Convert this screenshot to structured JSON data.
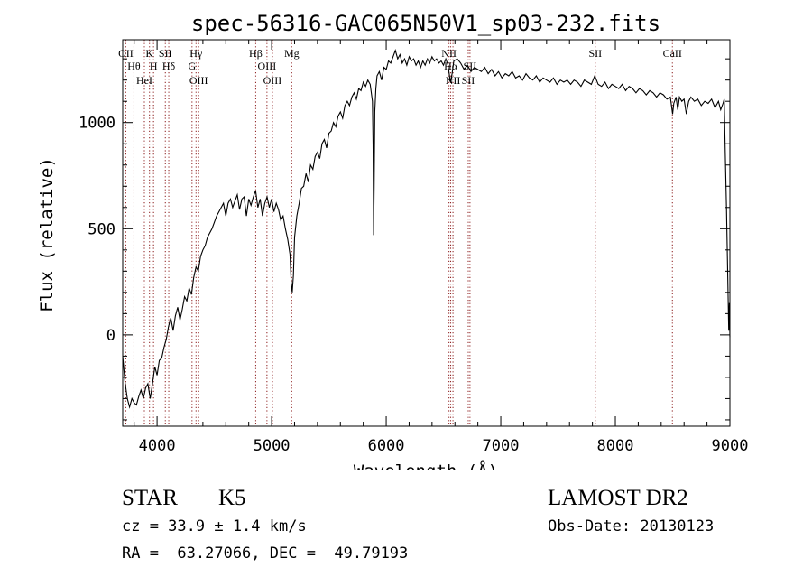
{
  "chart_data": {
    "type": "line",
    "title": "spec-56316-GAC065N50V1_sp03-232.fits",
    "xlabel": "Wavelength (Å)",
    "ylabel": "Flux (relative)",
    "xlim": [
      3700,
      9000
    ],
    "ylim": [
      -430,
      1390
    ],
    "xticks": [
      4000,
      5000,
      6000,
      7000,
      8000,
      9000
    ],
    "yticks": [
      0,
      500,
      1000
    ],
    "grid": false,
    "series": [
      {
        "points": [
          [
            3700,
            -100
          ],
          [
            3720,
            -220
          ],
          [
            3740,
            -300
          ],
          [
            3760,
            -340
          ],
          [
            3780,
            -300
          ],
          [
            3800,
            -320
          ],
          [
            3820,
            -330
          ],
          [
            3840,
            -290
          ],
          [
            3860,
            -260
          ],
          [
            3880,
            -300
          ],
          [
            3900,
            -250
          ],
          [
            3920,
            -230
          ],
          [
            3940,
            -300
          ],
          [
            3960,
            -230
          ],
          [
            3980,
            -150
          ],
          [
            4000,
            -190
          ],
          [
            4020,
            -120
          ],
          [
            4040,
            -110
          ],
          [
            4060,
            -60
          ],
          [
            4080,
            -20
          ],
          [
            4100,
            40
          ],
          [
            4120,
            80
          ],
          [
            4140,
            20
          ],
          [
            4160,
            90
          ],
          [
            4180,
            130
          ],
          [
            4200,
            70
          ],
          [
            4220,
            120
          ],
          [
            4240,
            180
          ],
          [
            4260,
            160
          ],
          [
            4280,
            220
          ],
          [
            4300,
            190
          ],
          [
            4320,
            270
          ],
          [
            4340,
            320
          ],
          [
            4360,
            300
          ],
          [
            4380,
            370
          ],
          [
            4400,
            400
          ],
          [
            4420,
            420
          ],
          [
            4440,
            460
          ],
          [
            4460,
            480
          ],
          [
            4480,
            500
          ],
          [
            4500,
            530
          ],
          [
            4520,
            560
          ],
          [
            4540,
            580
          ],
          [
            4560,
            600
          ],
          [
            4580,
            620
          ],
          [
            4600,
            560
          ],
          [
            4620,
            620
          ],
          [
            4640,
            640
          ],
          [
            4660,
            600
          ],
          [
            4680,
            630
          ],
          [
            4700,
            660
          ],
          [
            4720,
            590
          ],
          [
            4740,
            640
          ],
          [
            4760,
            650
          ],
          [
            4780,
            560
          ],
          [
            4800,
            640
          ],
          [
            4820,
            610
          ],
          [
            4840,
            650
          ],
          [
            4860,
            680
          ],
          [
            4880,
            600
          ],
          [
            4900,
            640
          ],
          [
            4920,
            560
          ],
          [
            4940,
            620
          ],
          [
            4960,
            650
          ],
          [
            4980,
            600
          ],
          [
            5000,
            640
          ],
          [
            5020,
            580
          ],
          [
            5040,
            620
          ],
          [
            5060,
            590
          ],
          [
            5080,
            540
          ],
          [
            5100,
            560
          ],
          [
            5120,
            500
          ],
          [
            5140,
            450
          ],
          [
            5160,
            380
          ],
          [
            5170,
            250
          ],
          [
            5180,
            200
          ],
          [
            5190,
            280
          ],
          [
            5200,
            460
          ],
          [
            5220,
            560
          ],
          [
            5240,
            620
          ],
          [
            5260,
            690
          ],
          [
            5280,
            700
          ],
          [
            5300,
            760
          ],
          [
            5320,
            720
          ],
          [
            5340,
            800
          ],
          [
            5360,
            780
          ],
          [
            5380,
            840
          ],
          [
            5400,
            860
          ],
          [
            5420,
            830
          ],
          [
            5440,
            900
          ],
          [
            5460,
            920
          ],
          [
            5480,
            880
          ],
          [
            5500,
            950
          ],
          [
            5520,
            960
          ],
          [
            5540,
            1000
          ],
          [
            5560,
            980
          ],
          [
            5580,
            1030
          ],
          [
            5600,
            1050
          ],
          [
            5620,
            1020
          ],
          [
            5640,
            1080
          ],
          [
            5660,
            1100
          ],
          [
            5680,
            1080
          ],
          [
            5700,
            1120
          ],
          [
            5720,
            1140
          ],
          [
            5740,
            1110
          ],
          [
            5760,
            1160
          ],
          [
            5780,
            1150
          ],
          [
            5800,
            1190
          ],
          [
            5820,
            1170
          ],
          [
            5840,
            1200
          ],
          [
            5860,
            1180
          ],
          [
            5880,
            1100
          ],
          [
            5885,
            900
          ],
          [
            5890,
            470
          ],
          [
            5895,
            700
          ],
          [
            5900,
            1050
          ],
          [
            5910,
            1160
          ],
          [
            5920,
            1220
          ],
          [
            5940,
            1240
          ],
          [
            5960,
            1200
          ],
          [
            5980,
            1260
          ],
          [
            6000,
            1250
          ],
          [
            6020,
            1290
          ],
          [
            6040,
            1280
          ],
          [
            6060,
            1310
          ],
          [
            6080,
            1340
          ],
          [
            6100,
            1300
          ],
          [
            6120,
            1320
          ],
          [
            6140,
            1280
          ],
          [
            6160,
            1300
          ],
          [
            6180,
            1270
          ],
          [
            6200,
            1310
          ],
          [
            6220,
            1290
          ],
          [
            6240,
            1300
          ],
          [
            6260,
            1270
          ],
          [
            6280,
            1290
          ],
          [
            6300,
            1260
          ],
          [
            6320,
            1290
          ],
          [
            6340,
            1270
          ],
          [
            6360,
            1300
          ],
          [
            6380,
            1280
          ],
          [
            6400,
            1310
          ],
          [
            6420,
            1290
          ],
          [
            6440,
            1300
          ],
          [
            6460,
            1280
          ],
          [
            6480,
            1290
          ],
          [
            6500,
            1270
          ],
          [
            6520,
            1300
          ],
          [
            6540,
            1270
          ],
          [
            6560,
            1190
          ],
          [
            6575,
            1230
          ],
          [
            6590,
            1290
          ],
          [
            6620,
            1300
          ],
          [
            6650,
            1280
          ],
          [
            6680,
            1250
          ],
          [
            6710,
            1270
          ],
          [
            6740,
            1240
          ],
          [
            6770,
            1260
          ],
          [
            6800,
            1250
          ],
          [
            6830,
            1240
          ],
          [
            6860,
            1260
          ],
          [
            6890,
            1230
          ],
          [
            6920,
            1250
          ],
          [
            6950,
            1220
          ],
          [
            6980,
            1240
          ],
          [
            7010,
            1210
          ],
          [
            7040,
            1230
          ],
          [
            7070,
            1220
          ],
          [
            7100,
            1240
          ],
          [
            7130,
            1210
          ],
          [
            7160,
            1220
          ],
          [
            7190,
            1200
          ],
          [
            7220,
            1230
          ],
          [
            7250,
            1210
          ],
          [
            7280,
            1200
          ],
          [
            7310,
            1220
          ],
          [
            7340,
            1190
          ],
          [
            7370,
            1210
          ],
          [
            7400,
            1200
          ],
          [
            7430,
            1190
          ],
          [
            7460,
            1210
          ],
          [
            7490,
            1180
          ],
          [
            7520,
            1200
          ],
          [
            7550,
            1190
          ],
          [
            7580,
            1200
          ],
          [
            7610,
            1180
          ],
          [
            7640,
            1200
          ],
          [
            7670,
            1190
          ],
          [
            7700,
            1170
          ],
          [
            7730,
            1200
          ],
          [
            7760,
            1190
          ],
          [
            7790,
            1180
          ],
          [
            7820,
            1220
          ],
          [
            7850,
            1180
          ],
          [
            7880,
            1170
          ],
          [
            7910,
            1190
          ],
          [
            7940,
            1160
          ],
          [
            7970,
            1180
          ],
          [
            8000,
            1170
          ],
          [
            8030,
            1160
          ],
          [
            8060,
            1180
          ],
          [
            8090,
            1150
          ],
          [
            8120,
            1170
          ],
          [
            8150,
            1160
          ],
          [
            8180,
            1140
          ],
          [
            8210,
            1160
          ],
          [
            8240,
            1150
          ],
          [
            8270,
            1130
          ],
          [
            8300,
            1150
          ],
          [
            8330,
            1140
          ],
          [
            8360,
            1120
          ],
          [
            8390,
            1140
          ],
          [
            8420,
            1130
          ],
          [
            8450,
            1110
          ],
          [
            8480,
            1120
          ],
          [
            8500,
            1040
          ],
          [
            8510,
            1090
          ],
          [
            8530,
            1120
          ],
          [
            8545,
            1060
          ],
          [
            8560,
            1120
          ],
          [
            8580,
            1100
          ],
          [
            8600,
            1110
          ],
          [
            8620,
            1040
          ],
          [
            8640,
            1100
          ],
          [
            8660,
            1120
          ],
          [
            8690,
            1100
          ],
          [
            8720,
            1110
          ],
          [
            8750,
            1080
          ],
          [
            8780,
            1100
          ],
          [
            8810,
            1090
          ],
          [
            8840,
            1110
          ],
          [
            8870,
            1070
          ],
          [
            8900,
            1100
          ],
          [
            8920,
            1060
          ],
          [
            8940,
            1090
          ],
          [
            8950,
            1110
          ],
          [
            8960,
            850
          ],
          [
            8970,
            600
          ],
          [
            8980,
            300
          ],
          [
            8990,
            20
          ],
          [
            8995,
            150
          ],
          [
            9000,
            -10
          ]
        ]
      }
    ],
    "lines": [
      {
        "label": "OII",
        "x": 3727
      },
      {
        "label": "Hθ",
        "x": 3798
      },
      {
        "label": "HeI",
        "x": 3889
      },
      {
        "label": "K",
        "x": 3934
      },
      {
        "label": "H",
        "x": 3969
      },
      {
        "label": "SII",
        "x": 4072
      },
      {
        "label": "Hδ",
        "x": 4102
      },
      {
        "label": "Hγ",
        "x": 4340
      },
      {
        "label": "G",
        "x": 4305
      },
      {
        "label": "OIII",
        "x": 4363
      },
      {
        "label": "Hβ",
        "x": 4861
      },
      {
        "label": "OIII",
        "x": 4959
      },
      {
        "label": "OIII",
        "x": 5007
      },
      {
        "label": "Mg",
        "x": 5175
      },
      {
        "label": "NII",
        "x": 6548
      },
      {
        "label": "Hα",
        "x": 6563
      },
      {
        "label": "NII",
        "x": 6583
      },
      {
        "label": "SII",
        "x": 6716
      },
      {
        "label": "SII",
        "x": 6731
      },
      {
        "label": "SII",
        "x": 7825
      },
      {
        "label": "CaII",
        "x": 8498
      }
    ]
  },
  "info": {
    "object_class": "STAR",
    "subclass": "K5",
    "survey": "LAMOST DR2",
    "cz": "cz = 33.9 ± 1.4 km/s",
    "obs_date": "Obs-Date: 20130123",
    "coords": "RA =  63.27066, DEC =  49.79193"
  },
  "colors": {
    "spectrum": "#000000",
    "line_markers": "#8b1a1a",
    "frame": "#000000"
  }
}
